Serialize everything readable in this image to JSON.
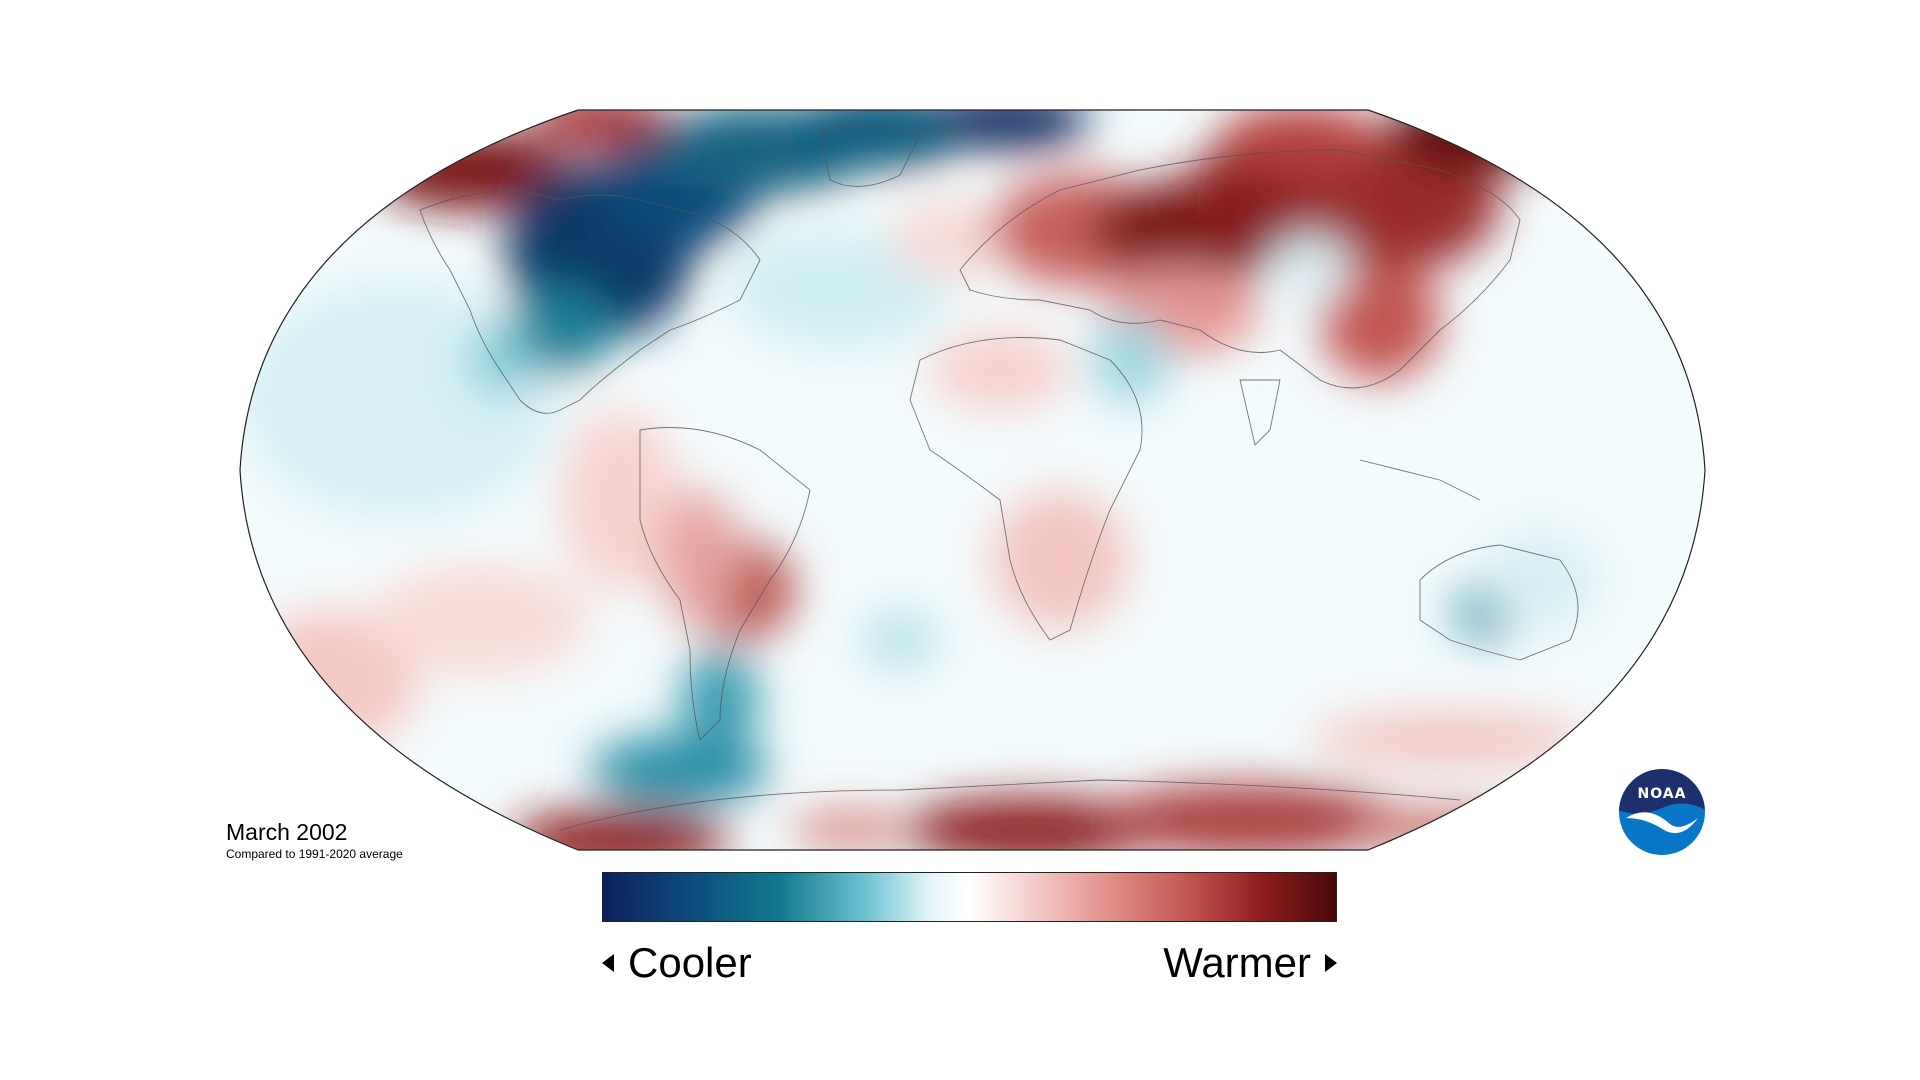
{
  "map": {
    "title": "March 2002",
    "subtitle": "Compared to 1991-2020 average",
    "projection": "Robinson",
    "variable": "temperature anomaly"
  },
  "legend": {
    "low_label": "Cooler",
    "high_label": "Warmer",
    "colors": [
      "#0d1f5c",
      "#0e4c7d",
      "#10798d",
      "#6fc3d2",
      "#e7f7fb",
      "#ffffff",
      "#f8dcda",
      "#e59590",
      "#c2544f",
      "#8e1d1e",
      "#4a0707"
    ]
  },
  "logo": {
    "name": "noaa-logo",
    "text": "NOAA",
    "colors": {
      "top": "#1e2f6e",
      "bottom": "#0a76c8",
      "wave": "#ffffff"
    }
  },
  "anomalies": [
    {
      "region": "Northern Canada / Hudson Bay",
      "level": "much cooler",
      "color": "#0d3a66"
    },
    {
      "region": "Greenland / Arctic Ocean north",
      "level": "much cooler",
      "color": "#0d2a5e"
    },
    {
      "region": "Alaska / Bering",
      "level": "much warmer",
      "color": "#7a1818"
    },
    {
      "region": "Central Asia / Siberia",
      "level": "much warmer",
      "color": "#5a0c0c"
    },
    {
      "region": "Eastern Siberia / Far East",
      "level": "warmer",
      "color": "#9a2a2a"
    },
    {
      "region": "Southern South America",
      "level": "warmer",
      "color": "#b8524c"
    },
    {
      "region": "Patagonia",
      "level": "cooler",
      "color": "#3e9db0"
    },
    {
      "region": "Southern Ocean south of South America",
      "level": "cooler",
      "color": "#2b8fa6"
    },
    {
      "region": "Antarctica east",
      "level": "much warmer",
      "color": "#8a1f1f"
    },
    {
      "region": "Central Australia",
      "level": "cooler",
      "color": "#2f97ad"
    },
    {
      "region": "Eastern Pacific south",
      "level": "slightly warmer",
      "color": "#f0b9b4"
    }
  ]
}
